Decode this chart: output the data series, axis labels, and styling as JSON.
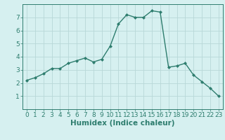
{
  "title": "",
  "xlabel": "Humidex (Indice chaleur)",
  "ylabel": "",
  "x": [
    0,
    1,
    2,
    3,
    4,
    5,
    6,
    7,
    8,
    9,
    10,
    11,
    12,
    13,
    14,
    15,
    16,
    17,
    18,
    19,
    20,
    21,
    22,
    23
  ],
  "y": [
    2.2,
    2.4,
    2.7,
    3.1,
    3.1,
    3.5,
    3.7,
    3.9,
    3.6,
    3.8,
    4.8,
    6.5,
    7.2,
    7.0,
    7.0,
    7.5,
    7.4,
    3.2,
    3.3,
    3.5,
    2.6,
    2.1,
    1.6,
    1.0
  ],
  "line_color": "#2e7d6e",
  "marker": "D",
  "marker_size": 2.0,
  "line_width": 1.0,
  "bg_color": "#d6f0f0",
  "grid_color": "#b8d8d8",
  "tick_color": "#2e7d6e",
  "label_color": "#2e7d6e",
  "ylim": [
    0,
    8
  ],
  "xlim": [
    -0.5,
    23.5
  ],
  "yticks": [
    1,
    2,
    3,
    4,
    5,
    6,
    7
  ],
  "xticks": [
    0,
    1,
    2,
    3,
    4,
    5,
    6,
    7,
    8,
    9,
    10,
    11,
    12,
    13,
    14,
    15,
    16,
    17,
    18,
    19,
    20,
    21,
    22,
    23
  ],
  "tick_fontsize": 6.5,
  "xlabel_fontsize": 7.5
}
